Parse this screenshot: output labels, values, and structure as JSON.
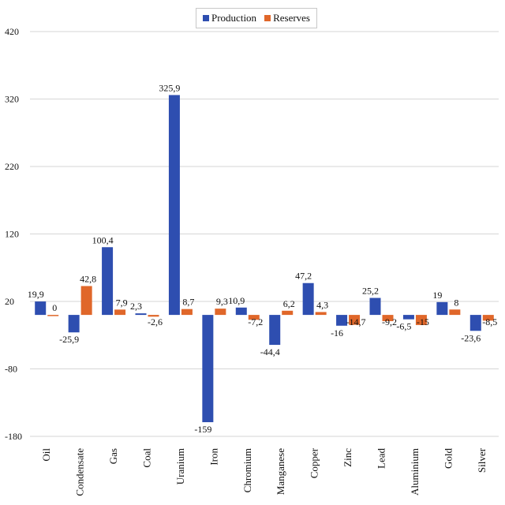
{
  "chart_data": {
    "type": "bar",
    "categories": [
      "Oil",
      "Condensate",
      "Gas",
      "Coal",
      "Uranium",
      "Iron",
      "Chromium",
      "Manganese",
      "Copper",
      "Zinc",
      "Lead",
      "Aluminium",
      "Gold",
      "Silver"
    ],
    "series": [
      {
        "name": "Production",
        "color": "#2e4eb0",
        "values": [
          19.9,
          -25.9,
          100.4,
          2.3,
          325.9,
          -159,
          10.9,
          -44.4,
          47.2,
          -16,
          25.2,
          -6.5,
          19,
          -23.6
        ],
        "labels": [
          "19,9",
          "-25,9",
          "100,4",
          "2,3",
          "325,9",
          "-159",
          "10,9",
          "-44,4",
          "47,2",
          "-16",
          "25,2",
          "-6,5",
          "19",
          "-23,6"
        ]
      },
      {
        "name": "Reserves",
        "color": "#e0672a",
        "values": [
          0,
          42.8,
          7.9,
          -2.6,
          8.7,
          9.3,
          -7.2,
          6.2,
          4.3,
          -14.7,
          -9.2,
          -15,
          8,
          -8.5
        ],
        "labels": [
          "0",
          "42,8",
          "7,9",
          "-2,6",
          "8,7",
          "9,3",
          "-7,2",
          "6,2",
          "4,3",
          "-14,7",
          "-9,2",
          "-15",
          "8",
          "-8,5"
        ]
      }
    ],
    "yticks": [
      "420",
      "320",
      "220",
      "120",
      "20",
      "-80",
      "-180"
    ],
    "ytick_values": [
      420,
      320,
      220,
      120,
      20,
      -80,
      -180
    ],
    "ylim": [
      -180,
      420
    ],
    "baseline": 0,
    "grid": true,
    "legend_position": "top-center",
    "title": "",
    "xlabel": "",
    "ylabel": ""
  }
}
